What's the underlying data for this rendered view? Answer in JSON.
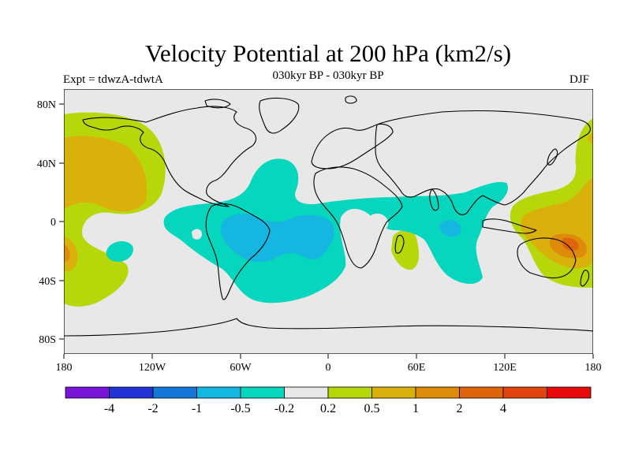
{
  "title": "Velocity Potential at 200 hPa (km2/s)",
  "subtitle": "030kyr BP - 030kyr BP",
  "experiment": "Expt = tdwzA-tdwtA",
  "season": "DJF",
  "lat_ticks": [
    "80N",
    "40N",
    "0",
    "40S",
    "80S"
  ],
  "lon_ticks": [
    "180",
    "120W",
    "60W",
    "0",
    "60E",
    "120E",
    "180"
  ],
  "colorbar": {
    "colors": [
      "#7a14d8",
      "#2233d6",
      "#1477d9",
      "#15b6df",
      "#06d6bd",
      "#e8e8e8",
      "#b8d70a",
      "#dab10a",
      "#de8a0a",
      "#e0640b",
      "#e2440d",
      "#e80a0a"
    ],
    "labels": [
      "-4",
      "-2",
      "-1",
      "-0.5",
      "-0.2",
      "0.2",
      "0.5",
      "1",
      "2",
      "4"
    ]
  }
}
